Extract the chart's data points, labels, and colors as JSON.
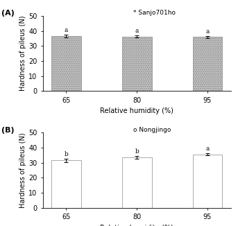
{
  "panel_A": {
    "label": "(A)",
    "legend_label": "Sanjo701ho",
    "legend_marker": "*",
    "categories": [
      "65",
      "80",
      "95"
    ],
    "values": [
      36.5,
      36.2,
      36.0
    ],
    "errors": [
      0.8,
      0.7,
      0.6
    ],
    "sig_labels": [
      "a",
      "a",
      "a"
    ],
    "bar_facecolor": "#c8c8c8",
    "hatch": "......",
    "ylabel": "Hardness of pileus (N)",
    "xlabel": "Relative humidity (%)",
    "ylim": [
      0,
      50
    ],
    "yticks": [
      0,
      10,
      20,
      30,
      40,
      50
    ]
  },
  "panel_B": {
    "label": "(B)",
    "legend_label": "Nongjingo",
    "legend_marker": "o",
    "categories": [
      "65",
      "80",
      "95"
    ],
    "values": [
      31.5,
      33.5,
      35.5
    ],
    "errors": [
      1.0,
      0.9,
      0.7
    ],
    "sig_labels": [
      "b",
      "b",
      "a"
    ],
    "bar_facecolor": "#ffffff",
    "hatch": "",
    "ylabel": "Hardness of pileus (N)",
    "xlabel": "Relative humidity (%)",
    "ylim": [
      0,
      50
    ],
    "yticks": [
      0,
      10,
      20,
      30,
      40,
      50
    ]
  }
}
